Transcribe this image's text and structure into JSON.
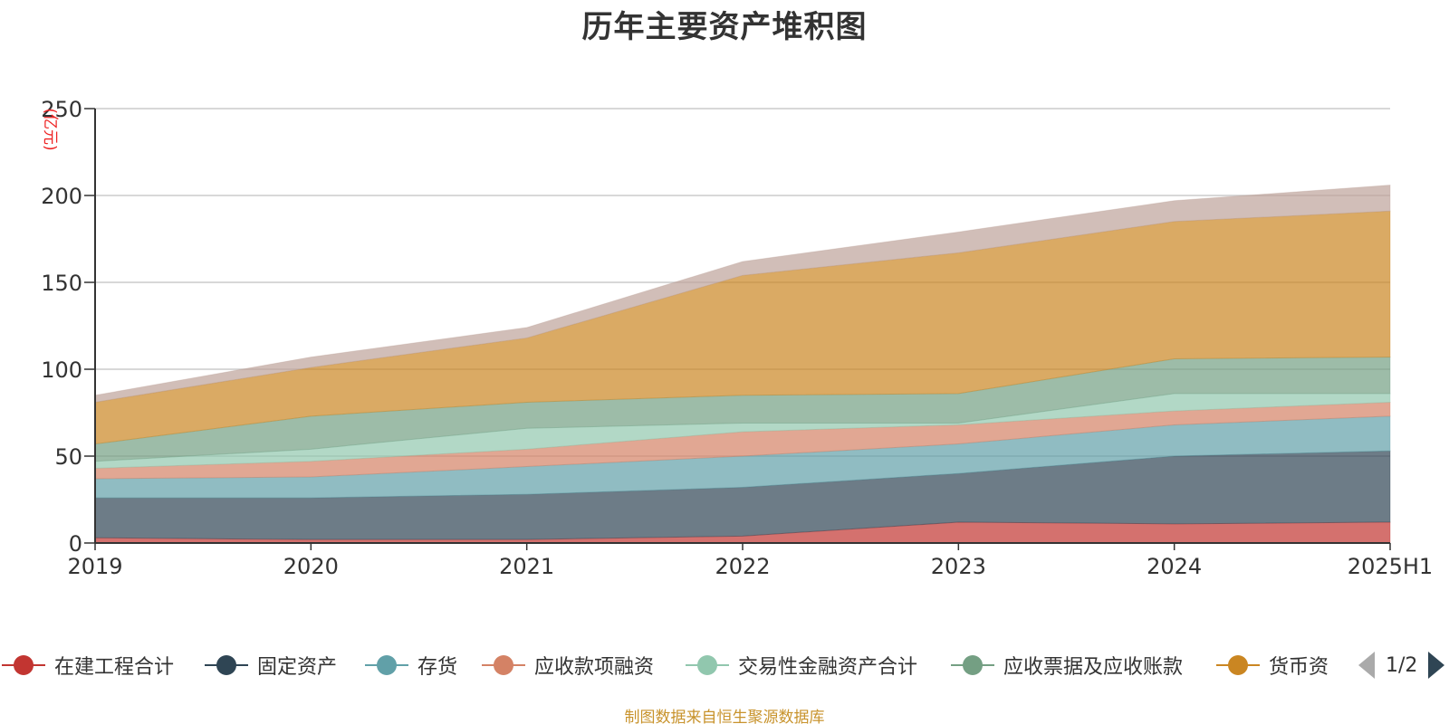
{
  "chart_data": {
    "type": "area",
    "stacked": true,
    "title": "历年主要资产堆积图",
    "ylabel": "(亿元)",
    "xlabel": "",
    "categories": [
      "2019",
      "2020",
      "2021",
      "2022",
      "2023",
      "2024",
      "2025H1"
    ],
    "ylim": [
      0,
      250
    ],
    "yticks": [
      0,
      50,
      100,
      150,
      200,
      250
    ],
    "grid": true,
    "legend_position": "bottom",
    "series": [
      {
        "name": "在建工程合计",
        "color": "#c23531",
        "values": [
          3,
          2,
          2,
          4,
          12,
          11,
          12
        ]
      },
      {
        "name": "固定资产",
        "color": "#2f4554",
        "values": [
          23,
          24,
          26,
          28,
          28,
          39,
          41
        ]
      },
      {
        "name": "存货",
        "color": "#61a0a8",
        "values": [
          11,
          12,
          16,
          18,
          17,
          18,
          20
        ]
      },
      {
        "name": "应收款项融资",
        "color": "#d48265",
        "values": [
          6,
          9,
          10,
          14,
          11,
          8,
          8
        ]
      },
      {
        "name": "交易性金融资产合计",
        "color": "#91c7ae",
        "values": [
          4,
          7,
          12,
          5,
          1,
          10,
          5
        ]
      },
      {
        "name": "应收票据及应收账款",
        "color": "#749f83",
        "values": [
          10,
          19,
          15,
          16,
          17,
          20,
          21
        ]
      },
      {
        "name": "货币资金",
        "color": "#ca8622",
        "values": [
          24,
          28,
          37,
          69,
          81,
          79,
          84
        ]
      },
      {
        "name": "",
        "color": "#bda29a",
        "values": [
          4,
          6,
          6,
          8,
          12,
          12,
          15
        ]
      }
    ]
  },
  "legend": {
    "items": [
      {
        "label": "在建工程合计",
        "color": "#c23531"
      },
      {
        "label": "固定资产",
        "color": "#2f4554"
      },
      {
        "label": "存货",
        "color": "#61a0a8"
      },
      {
        "label": "应收款项融资",
        "color": "#d48265"
      },
      {
        "label": "交易性金融资产合计",
        "color": "#91c7ae"
      },
      {
        "label": "应收票据及应收账款",
        "color": "#749f83"
      },
      {
        "label": "货币资",
        "color": "#ca8622"
      }
    ],
    "page_indicator": "1/2"
  },
  "source_note": "制图数据来自恒生聚源数据库"
}
